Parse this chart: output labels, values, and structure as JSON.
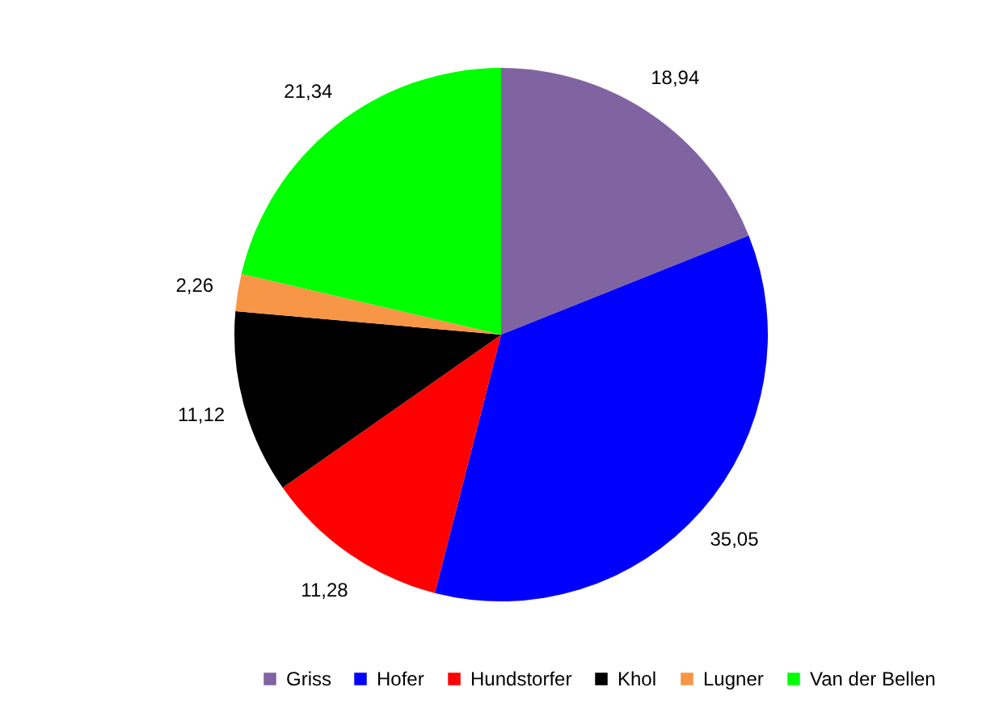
{
  "chart_data": {
    "type": "pie",
    "categories": [
      "Griss",
      "Hofer",
      "Hundstorfer",
      "Khol",
      "Lugner",
      "Van der Bellen"
    ],
    "values": [
      18.94,
      35.05,
      11.28,
      11.12,
      2.26,
      21.34
    ],
    "value_labels": [
      "18,94",
      "35,05",
      "11,28",
      "11,12",
      "2,26",
      "21,34"
    ],
    "colors": [
      "#8064a2",
      "#0000ff",
      "#ff0000",
      "#000000",
      "#f79646",
      "#00ff00"
    ],
    "legend": "bottom"
  }
}
